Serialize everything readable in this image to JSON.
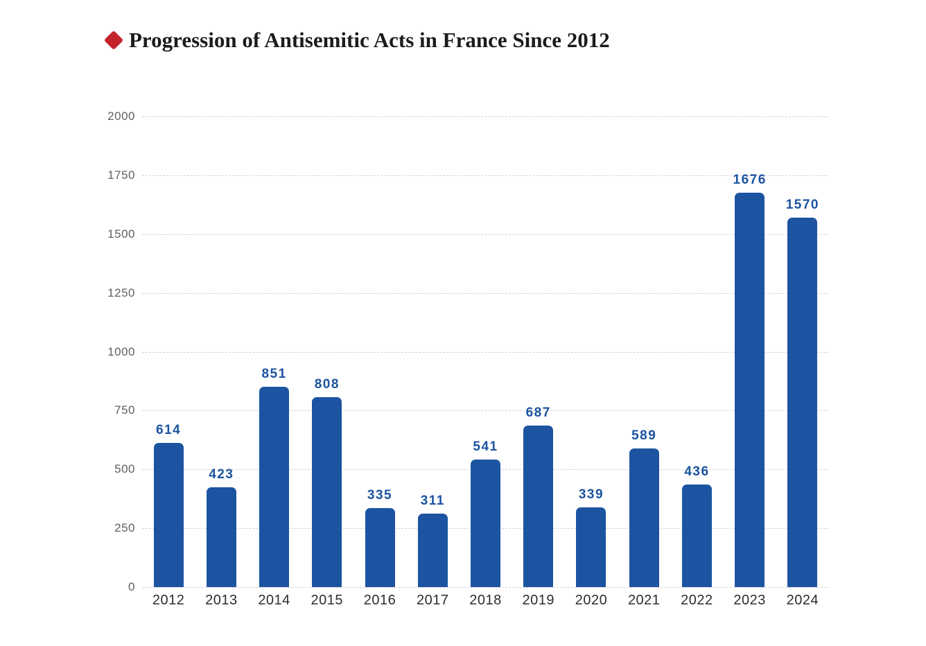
{
  "header": {
    "title": "Progression of Antisemitic Acts in France Since 2012",
    "bullet_color": "#c4232b"
  },
  "chart_data": {
    "type": "bar",
    "title": "Progression of Antisemitic Acts in France Since 2012",
    "categories": [
      "2012",
      "2013",
      "2014",
      "2015",
      "2016",
      "2017",
      "2018",
      "2019",
      "2020",
      "2021",
      "2022",
      "2023",
      "2024"
    ],
    "values": [
      614,
      423,
      851,
      808,
      335,
      311,
      541,
      687,
      339,
      589,
      436,
      1676,
      1570
    ],
    "xlabel": "",
    "ylabel": "",
    "ylim": [
      0,
      2000
    ],
    "yticks": [
      0,
      250,
      500,
      750,
      1000,
      1250,
      1500,
      1750,
      2000
    ],
    "grid": "horizontal-dashed",
    "legend_position": "none",
    "bar_color": "#1c54a1",
    "value_label_color": "#1b53a0",
    "gridline_color": "#d3d3d3",
    "axis_label_color": "#5f5f5f",
    "category_label_color": "#2d2d2d"
  }
}
